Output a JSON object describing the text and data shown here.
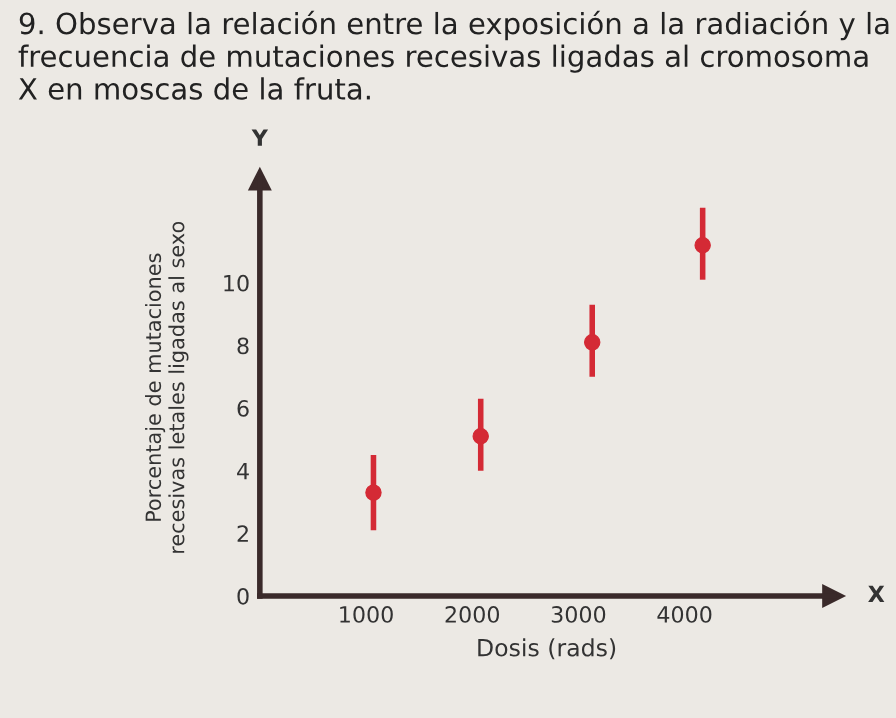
{
  "chart_data": {
    "type": "scatter",
    "title": "9. Observa la relación entre la exposición a la radiación y la frecuencia de mutaciones recesivas ligadas al cromosoma X en moscas de la fruta.",
    "xlabel": "Dosis (rads)",
    "ylabel": "Porcentaje de mutaciones\nrecesivas letales ligadas al sexo",
    "x": [
      1070,
      2080,
      3130,
      4170
    ],
    "series": [
      {
        "color": "#d42a35",
        "values": [
          3.3,
          5.1,
          8.1,
          11.2
        ],
        "errors": [
          [
            2.1,
            4.5
          ],
          [
            4.0,
            6.3
          ],
          [
            7.0,
            9.3
          ],
          [
            10.1,
            12.4
          ]
        ]
      }
    ],
    "xlim": [
      0,
      5400
    ],
    "ylim": [
      0,
      13.3
    ],
    "xticks": [
      1000,
      2000,
      3000,
      4000
    ],
    "yticks": [
      0,
      2,
      4,
      6,
      8,
      10
    ],
    "marker": "circle",
    "grid": false,
    "annotations": [
      "X",
      "Y"
    ]
  }
}
